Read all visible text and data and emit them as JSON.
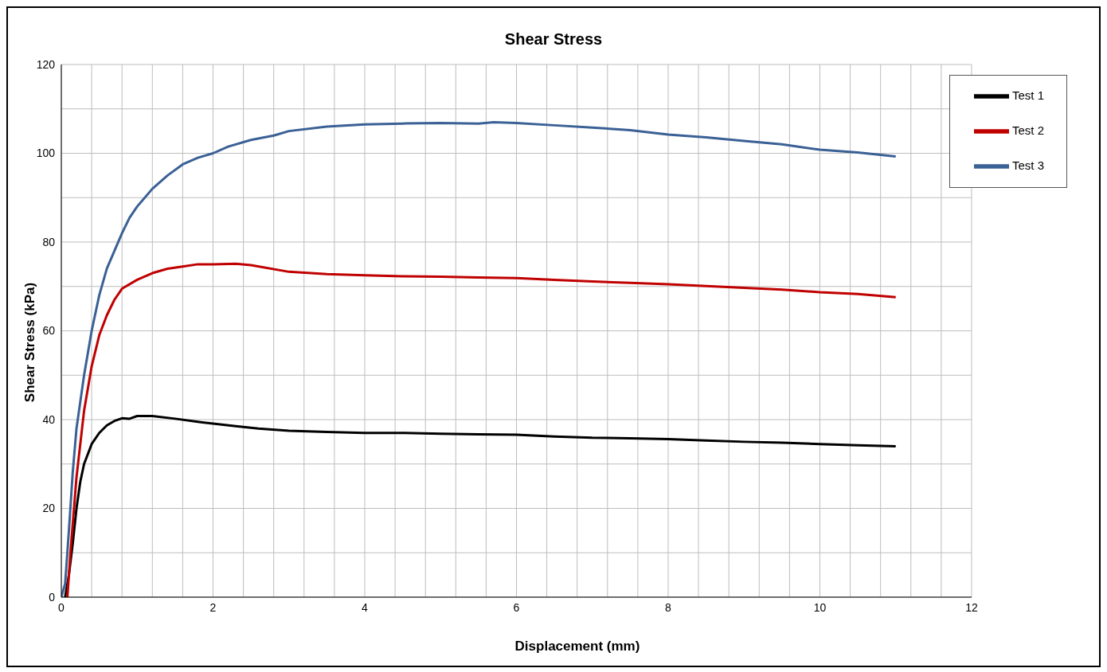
{
  "chart_data": {
    "type": "line",
    "title": "Shear Stress",
    "xlabel": "Displacement (mm)",
    "ylabel": "Shear Stress (kPa)",
    "xlim": [
      0,
      12
    ],
    "ylim": [
      0,
      120
    ],
    "xticks": [
      0,
      {
        "value": 0.4,
        "label": null
      },
      {
        "value": 0.8,
        "label": null
      },
      {
        "value": 1.2,
        "label": null
      },
      {
        "value": 1.6,
        "label": null
      },
      2,
      {
        "value": 2.4,
        "label": null
      },
      {
        "value": 2.8,
        "label": null
      },
      {
        "value": 3.2,
        "label": null
      },
      {
        "value": 3.6,
        "label": null
      },
      4,
      {
        "value": 4.4,
        "label": null
      },
      {
        "value": 4.8,
        "label": null
      },
      {
        "value": 5.2,
        "label": null
      },
      {
        "value": 5.6,
        "label": null
      },
      6,
      {
        "value": 6.4,
        "label": null
      },
      {
        "value": 6.8,
        "label": null
      },
      {
        "value": 7.2,
        "label": null
      },
      {
        "value": 7.6,
        "label": null
      },
      8,
      {
        "value": 8.4,
        "label": null
      },
      {
        "value": 8.8,
        "label": null
      },
      {
        "value": 9.2,
        "label": null
      },
      {
        "value": 9.6,
        "label": null
      },
      10,
      {
        "value": 10.4,
        "label": null
      },
      {
        "value": 10.8,
        "label": null
      },
      {
        "value": 11.2,
        "label": null
      },
      {
        "value": 11.6,
        "label": null
      },
      12
    ],
    "yticks": [
      0,
      {
        "value": 10,
        "label": null
      },
      20,
      {
        "value": 30,
        "label": null
      },
      40,
      {
        "value": 50,
        "label": null
      },
      60,
      {
        "value": 70,
        "label": null
      },
      80,
      {
        "value": 90,
        "label": null
      },
      100,
      {
        "value": 110,
        "label": null
      },
      120
    ],
    "grid": true,
    "legend": "top right",
    "marker": "none",
    "line_style": "solid",
    "series": [
      {
        "name": "Test 1",
        "color": "#000000",
        "x": [
          0.05,
          0.1,
          0.15,
          0.2,
          0.25,
          0.3,
          0.4,
          0.5,
          0.6,
          0.7,
          0.8,
          0.9,
          1.0,
          1.2,
          1.5,
          1.8,
          2,
          2.3,
          2.6,
          3,
          3.5,
          4,
          4.5,
          5,
          5.5,
          6,
          6.5,
          7,
          7.5,
          8,
          8.5,
          9,
          9.5,
          10,
          10.5,
          11
        ],
        "values": [
          0,
          5,
          12,
          20,
          26,
          30,
          34.5,
          37,
          38.7,
          39.7,
          40.3,
          40.2,
          40.8,
          40.8,
          40.2,
          39.5,
          39.1,
          38.5,
          38,
          37.5,
          37.2,
          37,
          37,
          36.8,
          36.7,
          36.6,
          36.2,
          35.9,
          35.8,
          35.6,
          35.3,
          35,
          34.8,
          34.5,
          34.2,
          34
        ]
      },
      {
        "name": "Test 2",
        "color": "#c00000",
        "x": [
          0.08,
          0.12,
          0.2,
          0.3,
          0.4,
          0.5,
          0.6,
          0.7,
          0.8,
          1.0,
          1.2,
          1.4,
          1.6,
          1.8,
          2.0,
          2.3,
          2.5,
          3,
          3.5,
          4,
          4.5,
          5,
          5.5,
          6,
          6.5,
          7,
          7.5,
          8,
          8.5,
          9,
          9.5,
          10,
          10.5,
          11
        ],
        "values": [
          0,
          10,
          27,
          42,
          52,
          59,
          63.5,
          67,
          69.5,
          71.5,
          73,
          74,
          74.5,
          75,
          75,
          75.1,
          74.8,
          73.3,
          72.8,
          72.5,
          72.3,
          72.2,
          72,
          71.9,
          71.5,
          71.1,
          70.8,
          70.5,
          70.1,
          69.7,
          69.3,
          68.7,
          68.3,
          67.6
        ]
      },
      {
        "name": "Test 3",
        "color": "#3a6095",
        "x": [
          0,
          0.05,
          0.1,
          0.15,
          0.2,
          0.3,
          0.4,
          0.5,
          0.6,
          0.7,
          0.8,
          0.9,
          1.0,
          1.2,
          1.4,
          1.6,
          1.8,
          2.0,
          2.2,
          2.5,
          2.8,
          3,
          3.5,
          4,
          4.5,
          5,
          5.5,
          5.7,
          6,
          6.5,
          7,
          7.5,
          8,
          8.5,
          9,
          9.5,
          10,
          10.5,
          11
        ],
        "values": [
          0,
          3,
          15,
          28,
          38,
          50,
          60,
          68,
          74,
          78,
          82,
          85.5,
          88,
          92,
          95,
          97.5,
          99,
          100,
          101.5,
          103,
          104,
          105,
          106,
          106.5,
          106.7,
          106.8,
          106.7,
          107,
          106.8,
          106.3,
          105.8,
          105.2,
          104.2,
          103.6,
          102.8,
          102,
          100.8,
          100.2,
          99.3
        ]
      }
    ]
  }
}
